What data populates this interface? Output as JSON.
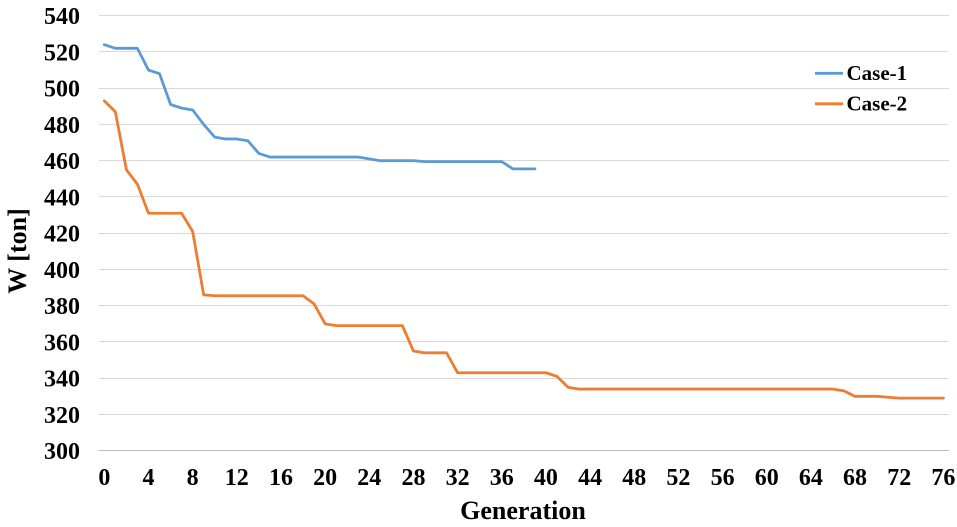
{
  "chart_data": {
    "type": "line",
    "xlabel": "Generation",
    "ylabel": "W [ton]",
    "x_ticks": [
      0,
      4,
      8,
      12,
      16,
      20,
      24,
      28,
      32,
      36,
      40,
      44,
      48,
      52,
      56,
      60,
      64,
      68,
      72,
      76
    ],
    "y_ticks": [
      300,
      320,
      340,
      360,
      380,
      400,
      420,
      440,
      460,
      480,
      500,
      520,
      540
    ],
    "xlim": [
      0,
      76
    ],
    "ylim": [
      300,
      540
    ],
    "grid": "horizontal",
    "gridline_color": "#d9d9d9",
    "axis_line_color": "#bfbfbf",
    "legend_position": "top-right-inside",
    "series": [
      {
        "name": "Case-1",
        "color": "#5b9bd5",
        "x_start": 0,
        "values": [
          524,
          522,
          522,
          522,
          510,
          508,
          491,
          489,
          488,
          480,
          473,
          472,
          472,
          471,
          464,
          462,
          462,
          462,
          462,
          462,
          462,
          462,
          462,
          462,
          461,
          460,
          460,
          460,
          460,
          459.5,
          459.5,
          459.5,
          459.5,
          459.5,
          459.5,
          459.5,
          459.5,
          455.5,
          455.5,
          455.5
        ]
      },
      {
        "name": "Case-2",
        "color": "#ed7d31",
        "x_start": 0,
        "values": [
          493,
          487,
          455,
          447,
          431,
          431,
          431,
          431,
          421,
          386,
          385.5,
          385.5,
          385.5,
          385.5,
          385.5,
          385.5,
          385.5,
          385.5,
          385.5,
          381,
          370,
          369,
          369,
          369,
          369,
          369,
          369,
          369,
          355,
          354,
          354,
          354,
          343,
          343,
          343,
          343,
          343,
          343,
          343,
          343,
          343,
          341,
          335,
          334,
          334,
          334,
          334,
          334,
          334,
          334,
          334,
          334,
          334,
          334,
          334,
          334,
          334,
          334,
          334,
          334,
          334,
          334,
          334,
          334,
          334,
          334,
          334,
          333,
          330,
          330,
          330,
          329.5,
          329,
          329,
          329,
          329,
          329
        ]
      }
    ]
  }
}
